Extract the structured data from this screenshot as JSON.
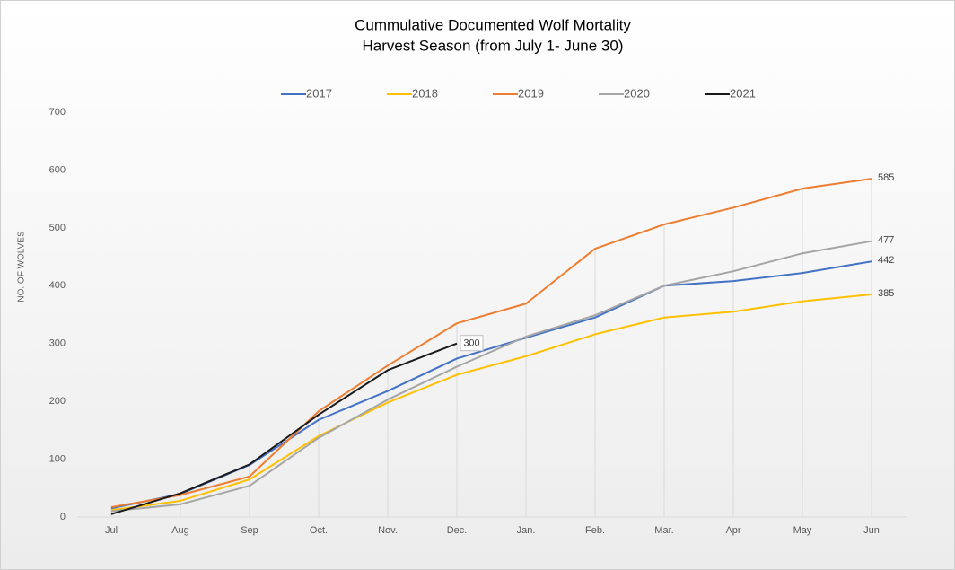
{
  "chart_data": {
    "type": "line",
    "title": "Cummulative  Documented  Wolf Mortality",
    "subtitle": "Harvest Season (from July 1- June 30)",
    "y_label": "NO. OF WOLVES",
    "categories": [
      "Jul",
      "Aug",
      "Sep",
      "Oct.",
      "Nov.",
      "Dec.",
      "Jan.",
      "Feb.",
      "Mar.",
      "Apr",
      "May",
      "Jun"
    ],
    "series": [
      {
        "name": "2017",
        "color": "#4472c4",
        "values": [
          15,
          40,
          90,
          168,
          218,
          274,
          310,
          345,
          400,
          408,
          422,
          442
        ]
      },
      {
        "name": "2018",
        "color": "#ffc000",
        "values": [
          12,
          28,
          65,
          140,
          198,
          246,
          278,
          316,
          345,
          355,
          373,
          385
        ]
      },
      {
        "name": "2019",
        "color": "#ed7d31",
        "values": [
          17,
          38,
          70,
          183,
          262,
          335,
          369,
          464,
          506,
          535,
          568,
          585
        ]
      },
      {
        "name": "2020",
        "color": "#a5a5a5",
        "values": [
          10,
          22,
          54,
          137,
          203,
          260,
          312,
          349,
          400,
          425,
          456,
          477
        ]
      },
      {
        "name": "2021",
        "color": "#1a1a1a",
        "values": [
          5,
          41,
          91,
          177,
          254,
          300,
          null,
          null,
          null,
          null,
          null,
          null
        ]
      }
    ],
    "ylim": [
      0,
      700
    ],
    "yticks": [
      0,
      100,
      200,
      300,
      400,
      500,
      600,
      700
    ],
    "grid": false,
    "legend": "top"
  }
}
